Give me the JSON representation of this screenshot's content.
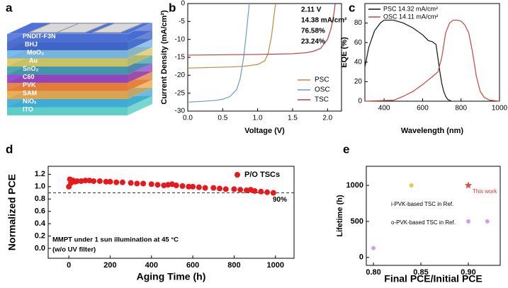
{
  "illustration": {
    "panel": "a",
    "layers": [
      {
        "name": "PNDIT-F3N",
        "color": "#4f72d8"
      },
      {
        "name": "BHJ",
        "color": "#3b5cc2"
      },
      {
        "name": "MoO₃",
        "color": "#6cb2ea"
      },
      {
        "name": "Au",
        "color": "#d9c45c"
      },
      {
        "name": "SnO₂",
        "color": "#3a9fa6"
      },
      {
        "name": "C60",
        "color": "#8a3fc9"
      },
      {
        "name": "PVK",
        "color": "#e0783a"
      },
      {
        "name": "SAM",
        "color": "#eba545"
      },
      {
        "name": "NiOₓ",
        "color": "#3ea6d8"
      },
      {
        "name": "ITO",
        "color": "#4cc9c0"
      }
    ]
  },
  "chart_data": [
    {
      "type": "line",
      "panel": "b",
      "xlabel": "Voltage (V)",
      "ylabel": "Current Density (mA/cm²)",
      "xlim": [
        0,
        2.2
      ],
      "ylim": [
        -30,
        0
      ],
      "xticks": [
        {
          "value": 0,
          "label": "0.0"
        },
        {
          "value": 0.5,
          "label": "0.5"
        },
        {
          "value": 1,
          "label": "1.0"
        },
        {
          "value": 1.5,
          "label": "1.5"
        },
        {
          "value": 2,
          "label": "2.0"
        }
      ],
      "yticks": [
        -30,
        -25,
        -20,
        -15,
        -10,
        -5,
        0
      ],
      "annotations": [
        "2.11 V",
        "14.38 mA/cm²",
        "76.58%",
        "23.24%"
      ],
      "legend": "lower right",
      "series": [
        {
          "name": "PSC",
          "color": "#c8873a",
          "x": [
            0,
            0.2,
            0.4,
            0.6,
            0.8,
            1.0,
            1.1,
            1.15,
            1.2,
            1.23,
            1.25,
            1.26
          ],
          "values": [
            -18,
            -17.9,
            -17.8,
            -17.7,
            -17.5,
            -17,
            -16,
            -14,
            -9,
            -4,
            -1,
            0
          ]
        },
        {
          "name": "OSC",
          "color": "#6c9cc4",
          "x": [
            0,
            0.2,
            0.4,
            0.5,
            0.6,
            0.7,
            0.75,
            0.8,
            0.84,
            0.87,
            0.88
          ],
          "values": [
            -27.5,
            -27.3,
            -27,
            -26.7,
            -26,
            -24,
            -21,
            -15,
            -8,
            -2,
            0
          ]
        },
        {
          "name": "TSC",
          "color": "#b5423f",
          "x": [
            0,
            0.5,
            1.0,
            1.5,
            1.7,
            1.8,
            1.9,
            2.0,
            2.05,
            2.09,
            2.11
          ],
          "values": [
            -14.4,
            -14.3,
            -14.2,
            -14,
            -13.7,
            -13.3,
            -12.5,
            -10,
            -7,
            -3,
            0
          ]
        }
      ]
    },
    {
      "type": "line",
      "panel": "c",
      "xlabel": "Wavelength (nm)",
      "ylabel": "EQE (%)",
      "xlim": [
        300,
        1000
      ],
      "ylim": [
        0,
        100
      ],
      "xticks": [
        400,
        600,
        800,
        1000
      ],
      "yticks": [
        0,
        20,
        40,
        60,
        80
      ],
      "legend": "upper left",
      "series": [
        {
          "name": "PSC 14.32 mA/cm²",
          "color": "#111111",
          "x": [
            300,
            320,
            350,
            380,
            400,
            450,
            500,
            550,
            600,
            630,
            650,
            670,
            690,
            700,
            710,
            720,
            730,
            750
          ],
          "values": [
            35,
            55,
            72,
            80,
            83,
            83,
            80,
            75,
            68,
            62,
            61,
            58,
            30,
            18,
            10,
            5,
            2,
            0
          ]
        },
        {
          "name": "OSC 14.11 mA/cm²",
          "color": "#c8453f",
          "x": [
            300,
            450,
            500,
            550,
            600,
            650,
            680,
            700,
            720,
            740,
            760,
            780,
            800,
            820,
            840,
            860,
            880,
            900,
            920,
            950,
            1000
          ],
          "values": [
            0,
            1,
            5,
            10,
            17,
            25,
            30,
            45,
            70,
            80,
            83,
            83,
            82,
            78,
            70,
            50,
            25,
            10,
            4,
            1,
            0
          ]
        }
      ]
    },
    {
      "type": "scatter",
      "panel": "d",
      "xlabel": "Aging Time (h)",
      "ylabel": "Normalized PCE",
      "xlim": [
        -100,
        1090
      ],
      "ylim": [
        -0.16,
        1.33
      ],
      "xticks": [
        0,
        200,
        400,
        600,
        800,
        1000
      ],
      "yticks": [
        {
          "value": 0,
          "label": "0.0"
        },
        {
          "value": 0.2,
          "label": "0.2"
        },
        {
          "value": 0.4,
          "label": "0.4"
        },
        {
          "value": 0.6,
          "label": "0.6"
        },
        {
          "value": 0.8,
          "label": "0.8"
        },
        {
          "value": 1,
          "label": "1.0"
        },
        {
          "value": 1.2,
          "label": "1.2"
        }
      ],
      "hline": {
        "value": 0.9,
        "label": "90%"
      },
      "annotations": [
        "MMPT under 1 sun illumination at 45 °C",
        "(w/o UV filter)"
      ],
      "legend": "upper right",
      "series": [
        {
          "name": "P/O TSCs",
          "color": "#e8191c",
          "x": [
            0,
            5,
            10,
            20,
            30,
            40,
            60,
            80,
            100,
            120,
            150,
            180,
            200,
            230,
            260,
            300,
            330,
            360,
            400,
            430,
            460,
            480,
            500,
            520,
            550,
            580,
            600,
            630,
            660,
            700,
            730,
            760,
            800,
            830,
            860,
            880,
            900,
            930,
            960,
            990
          ],
          "values": [
            1.0,
            1.12,
            1.06,
            1.1,
            1.08,
            1.09,
            1.09,
            1.1,
            1.1,
            1.09,
            1.09,
            1.08,
            1.08,
            1.07,
            1.07,
            1.06,
            1.05,
            1.05,
            1.04,
            1.03,
            1.02,
            1.03,
            1.04,
            1.02,
            1.01,
            1.0,
            1.0,
            0.99,
            0.98,
            0.98,
            0.97,
            0.96,
            0.96,
            0.95,
            0.94,
            0.95,
            0.93,
            0.92,
            0.91,
            0.9
          ]
        }
      ]
    },
    {
      "type": "scatter",
      "panel": "e",
      "xlabel": "Final PCE/Initial PCE",
      "ylabel": "Lifetime (h)",
      "xlim": [
        0.7925,
        0.9336
      ],
      "ylim": [
        -110,
        1265
      ],
      "xticks": [
        {
          "value": 0.8,
          "label": "0.80"
        },
        {
          "value": 0.85,
          "label": "0.85"
        },
        {
          "value": 0.9,
          "label": "0.90"
        }
      ],
      "yticks": [
        0,
        500,
        1000
      ],
      "annotations": [
        "i-PVK-based TSC in Ref.",
        "This work",
        "o-PVK-based TSC in Ref."
      ],
      "series": [
        {
          "x": [
            0.8,
            0.84,
            0.9,
            0.9,
            0.92
          ],
          "values": [
            130,
            1000,
            1000,
            500,
            500
          ],
          "colors": [
            "#c9a2e8",
            "#f4c53e",
            "#d9534f",
            "#c9a2e8",
            "#c9a2e8"
          ],
          "markers": [
            "circle",
            "circle",
            "star",
            "circle",
            "circle"
          ]
        }
      ]
    }
  ]
}
